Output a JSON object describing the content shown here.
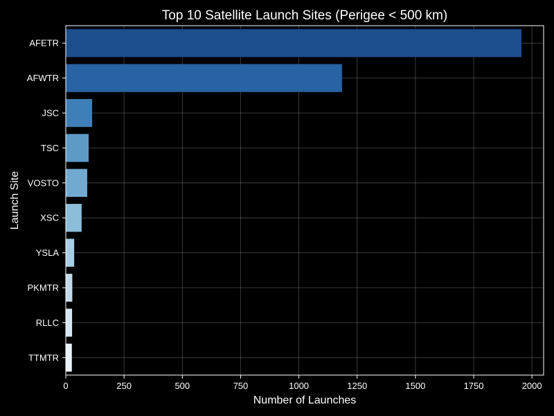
{
  "chart_data": {
    "type": "bar",
    "orientation": "horizontal",
    "title": "Top 10 Satellite Launch Sites (Perigee < 500 km)",
    "xlabel": "Number of Launches",
    "ylabel": "Launch Site",
    "xlim": [
      0,
      2050
    ],
    "xticks": [
      0,
      250,
      500,
      750,
      1000,
      1250,
      1500,
      1750,
      2000
    ],
    "grid": true,
    "categories": [
      "AFETR",
      "AFWTR",
      "JSC",
      "TSC",
      "VOSTO",
      "XSC",
      "YSLA",
      "PKMTR",
      "RLLC",
      "TTMTR"
    ],
    "values": [
      1955,
      1185,
      113,
      98,
      92,
      68,
      36,
      28,
      27,
      26
    ],
    "colors": [
      "#1c4d8c",
      "#2863a4",
      "#3f7fb7",
      "#5b9bc6",
      "#72a9d0",
      "#8cbdd9",
      "#a8cee3",
      "#c2dbec",
      "#d6e6f3",
      "#e9f2fa"
    ]
  }
}
